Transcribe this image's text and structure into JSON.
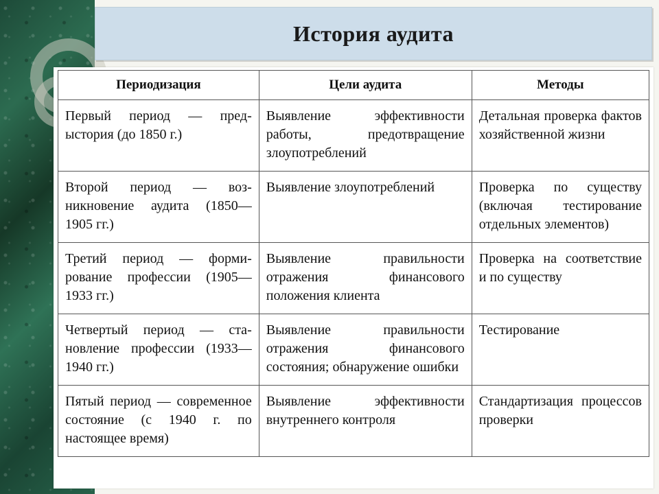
{
  "title": "История аудита",
  "colors": {
    "title_band_bg": "#cdddea",
    "title_band_border": "#bcced9",
    "slide_bg": "#f5f5f0",
    "sidebar_primary": "#1d4a38",
    "table_border": "#555555",
    "text": "#111111"
  },
  "typography": {
    "title_fontsize_pt": 24,
    "header_fontsize_pt": 14,
    "cell_fontsize_pt": 15,
    "font_family": "serif"
  },
  "table": {
    "type": "table",
    "column_widths_pct": [
      34,
      36,
      30
    ],
    "columns": [
      "Периодизация",
      "Цели аудита",
      "Методы"
    ],
    "rows": [
      {
        "period": "Первый период — пред­ыстория (до 1850 г.)",
        "goals": "Выявление эффектив­ности работы, предот­вращение злоупотреб­лений",
        "methods": "Детальная проверка фактов хозяйственной жизни"
      },
      {
        "period": "Второй период — воз­никновение аудита (1850—1905 гг.)",
        "goals": "Выявление злоупотреб­лений",
        "methods": "Проверка по существу (включая тестирование отдельных элементов)"
      },
      {
        "period": "Третий период — форми­рование профессии (1905—1933 гг.)",
        "goals": "Выявление правильнос­ти отражения финансо­вого положения клиента",
        "methods": "Проверка на соответ­ствие и по существу"
      },
      {
        "period": "Четвертый период — ста­новление профессии (1933—1940 гг.)",
        "goals": "Выявление правильнос­ти отражения финансо­вого состояния; обнару­жение ошибки",
        "methods": "Тестирование"
      },
      {
        "period": "Пятый период — совре­менное состояние (с 1940 г. по настоящее время)",
        "goals": "Выявление эффектив­ности внутреннего кон­троля",
        "methods": "Стандартизация про­цессов проверки"
      }
    ]
  }
}
